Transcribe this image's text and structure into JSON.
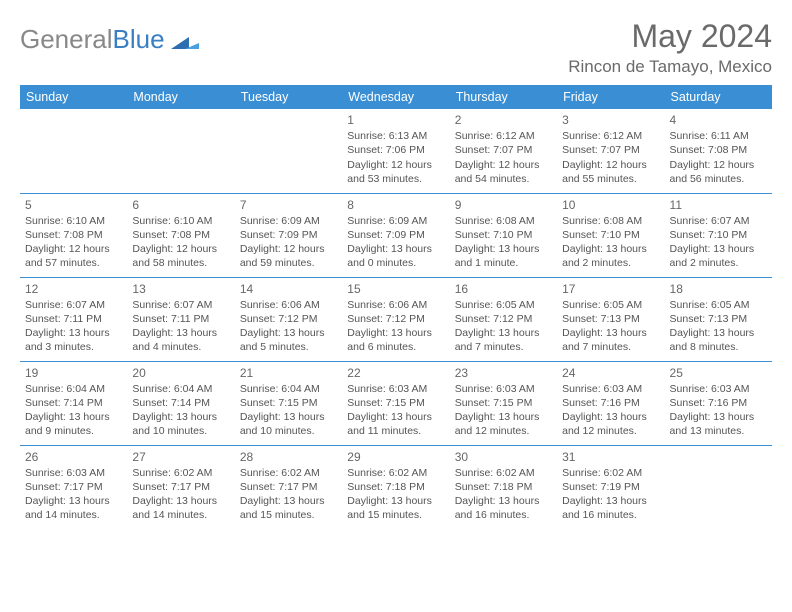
{
  "brand": {
    "part1": "General",
    "part2": "Blue"
  },
  "title": "May 2024",
  "location": "Rincon de Tamayo, Mexico",
  "colors": {
    "header_bg": "#3a8fd4",
    "header_text": "#ffffff",
    "border": "#3a8fd4",
    "body_text": "#555555",
    "title_text": "#6a6a6a",
    "brand_gray": "#888888",
    "brand_blue": "#3a7fc4",
    "page_bg": "#ffffff"
  },
  "day_headers": [
    "Sunday",
    "Monday",
    "Tuesday",
    "Wednesday",
    "Thursday",
    "Friday",
    "Saturday"
  ],
  "weeks": [
    [
      null,
      null,
      null,
      {
        "n": "1",
        "sr": "6:13 AM",
        "ss": "7:06 PM",
        "dl": "12 hours and 53 minutes."
      },
      {
        "n": "2",
        "sr": "6:12 AM",
        "ss": "7:07 PM",
        "dl": "12 hours and 54 minutes."
      },
      {
        "n": "3",
        "sr": "6:12 AM",
        "ss": "7:07 PM",
        "dl": "12 hours and 55 minutes."
      },
      {
        "n": "4",
        "sr": "6:11 AM",
        "ss": "7:08 PM",
        "dl": "12 hours and 56 minutes."
      }
    ],
    [
      {
        "n": "5",
        "sr": "6:10 AM",
        "ss": "7:08 PM",
        "dl": "12 hours and 57 minutes."
      },
      {
        "n": "6",
        "sr": "6:10 AM",
        "ss": "7:08 PM",
        "dl": "12 hours and 58 minutes."
      },
      {
        "n": "7",
        "sr": "6:09 AM",
        "ss": "7:09 PM",
        "dl": "12 hours and 59 minutes."
      },
      {
        "n": "8",
        "sr": "6:09 AM",
        "ss": "7:09 PM",
        "dl": "13 hours and 0 minutes."
      },
      {
        "n": "9",
        "sr": "6:08 AM",
        "ss": "7:10 PM",
        "dl": "13 hours and 1 minute."
      },
      {
        "n": "10",
        "sr": "6:08 AM",
        "ss": "7:10 PM",
        "dl": "13 hours and 2 minutes."
      },
      {
        "n": "11",
        "sr": "6:07 AM",
        "ss": "7:10 PM",
        "dl": "13 hours and 2 minutes."
      }
    ],
    [
      {
        "n": "12",
        "sr": "6:07 AM",
        "ss": "7:11 PM",
        "dl": "13 hours and 3 minutes."
      },
      {
        "n": "13",
        "sr": "6:07 AM",
        "ss": "7:11 PM",
        "dl": "13 hours and 4 minutes."
      },
      {
        "n": "14",
        "sr": "6:06 AM",
        "ss": "7:12 PM",
        "dl": "13 hours and 5 minutes."
      },
      {
        "n": "15",
        "sr": "6:06 AM",
        "ss": "7:12 PM",
        "dl": "13 hours and 6 minutes."
      },
      {
        "n": "16",
        "sr": "6:05 AM",
        "ss": "7:12 PM",
        "dl": "13 hours and 7 minutes."
      },
      {
        "n": "17",
        "sr": "6:05 AM",
        "ss": "7:13 PM",
        "dl": "13 hours and 7 minutes."
      },
      {
        "n": "18",
        "sr": "6:05 AM",
        "ss": "7:13 PM",
        "dl": "13 hours and 8 minutes."
      }
    ],
    [
      {
        "n": "19",
        "sr": "6:04 AM",
        "ss": "7:14 PM",
        "dl": "13 hours and 9 minutes."
      },
      {
        "n": "20",
        "sr": "6:04 AM",
        "ss": "7:14 PM",
        "dl": "13 hours and 10 minutes."
      },
      {
        "n": "21",
        "sr": "6:04 AM",
        "ss": "7:15 PM",
        "dl": "13 hours and 10 minutes."
      },
      {
        "n": "22",
        "sr": "6:03 AM",
        "ss": "7:15 PM",
        "dl": "13 hours and 11 minutes."
      },
      {
        "n": "23",
        "sr": "6:03 AM",
        "ss": "7:15 PM",
        "dl": "13 hours and 12 minutes."
      },
      {
        "n": "24",
        "sr": "6:03 AM",
        "ss": "7:16 PM",
        "dl": "13 hours and 12 minutes."
      },
      {
        "n": "25",
        "sr": "6:03 AM",
        "ss": "7:16 PM",
        "dl": "13 hours and 13 minutes."
      }
    ],
    [
      {
        "n": "26",
        "sr": "6:03 AM",
        "ss": "7:17 PM",
        "dl": "13 hours and 14 minutes."
      },
      {
        "n": "27",
        "sr": "6:02 AM",
        "ss": "7:17 PM",
        "dl": "13 hours and 14 minutes."
      },
      {
        "n": "28",
        "sr": "6:02 AM",
        "ss": "7:17 PM",
        "dl": "13 hours and 15 minutes."
      },
      {
        "n": "29",
        "sr": "6:02 AM",
        "ss": "7:18 PM",
        "dl": "13 hours and 15 minutes."
      },
      {
        "n": "30",
        "sr": "6:02 AM",
        "ss": "7:18 PM",
        "dl": "13 hours and 16 minutes."
      },
      {
        "n": "31",
        "sr": "6:02 AM",
        "ss": "7:19 PM",
        "dl": "13 hours and 16 minutes."
      },
      null
    ]
  ],
  "labels": {
    "sunrise": "Sunrise:",
    "sunset": "Sunset:",
    "daylight": "Daylight:"
  }
}
